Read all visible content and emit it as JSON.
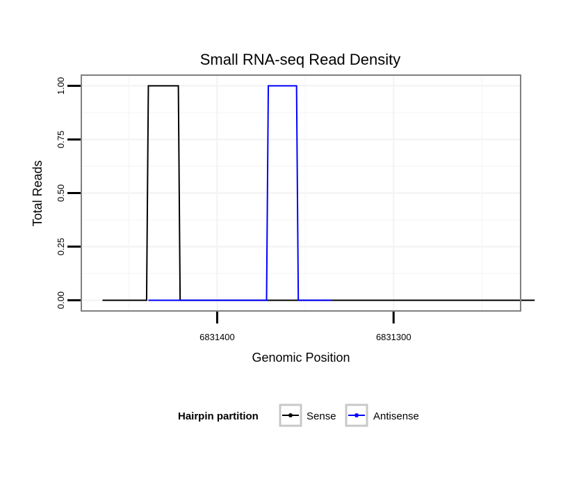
{
  "chart_data": {
    "type": "line",
    "title": "Small RNA-seq Read Density",
    "xlabel": "Genomic Position",
    "ylabel": "Total Reads",
    "x_reversed": true,
    "xlim": [
      6831477,
      6831228
    ],
    "ylim": [
      -0.05,
      1.05
    ],
    "x_ticks": [
      6831400,
      6831300
    ],
    "x_tick_labels": [
      "6831400",
      "6831300"
    ],
    "y_ticks": [
      0,
      0.25,
      0.5,
      0.75,
      1.0
    ],
    "y_tick_labels": [
      "0.00",
      "0.25",
      "0.50",
      "0.75",
      "1.00"
    ],
    "grid": true,
    "legend_position": "bottom",
    "legend_title": "Hairpin partition",
    "series": [
      {
        "name": "Sense",
        "color": "#000000",
        "x": [
          6831465,
          6831440,
          6831439,
          6831422,
          6831421,
          6831220
        ],
        "y": [
          0,
          0,
          1,
          1,
          0,
          0
        ]
      },
      {
        "name": "Antisense",
        "color": "#0000ff",
        "x": [
          6831439,
          6831420,
          6831372,
          6831371,
          6831355,
          6831354,
          6831335
        ],
        "y": [
          0,
          0,
          0,
          1,
          1,
          0,
          0
        ]
      }
    ]
  }
}
